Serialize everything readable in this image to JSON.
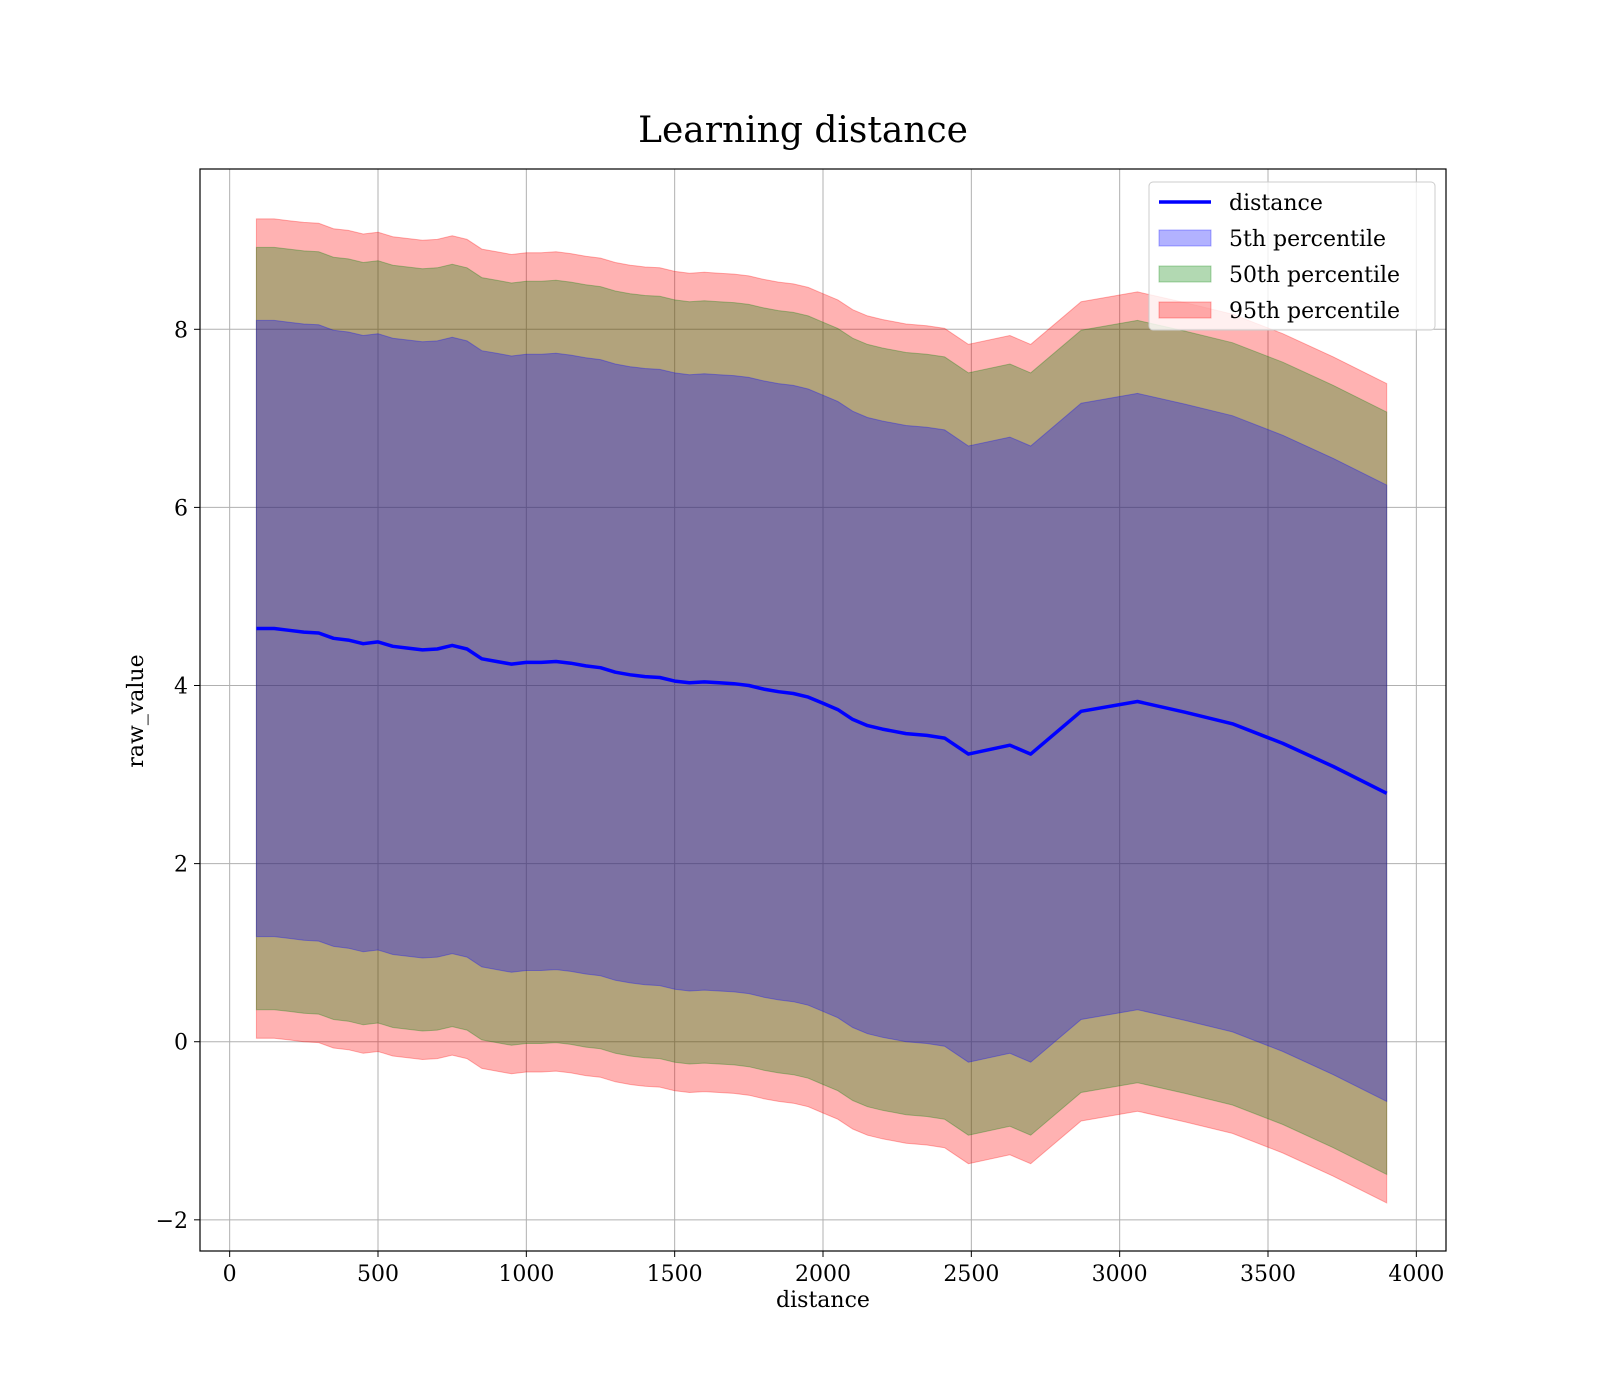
{
  "chart_data": {
    "type": "line",
    "title": "Learning distance",
    "xlabel": "distance",
    "ylabel": "raw_value",
    "xlim": [
      -100,
      4100
    ],
    "ylim": [
      -2.35,
      9.8
    ],
    "xticks": [
      0,
      500,
      1000,
      1500,
      2000,
      2500,
      3000,
      3500,
      4000
    ],
    "yticks": [
      -2,
      0,
      2,
      4,
      6,
      8
    ],
    "grid": true,
    "legend_position": "top-right",
    "x": [
      90,
      150,
      200,
      250,
      300,
      350,
      400,
      450,
      500,
      550,
      600,
      650,
      700,
      750,
      800,
      850,
      900,
      950,
      1000,
      1050,
      1100,
      1150,
      1200,
      1250,
      1300,
      1350,
      1400,
      1450,
      1500,
      1550,
      1600,
      1650,
      1700,
      1750,
      1800,
      1850,
      1900,
      1950,
      2000,
      2050,
      2100,
      2150,
      2200,
      2280,
      2350,
      2410,
      2490,
      2630,
      2700,
      2870,
      3060,
      3220,
      3380,
      3550,
      3720,
      3900
    ],
    "series": [
      {
        "name": "distance",
        "kind": "line",
        "color": "#0000ff",
        "values": [
          4.64,
          4.64,
          4.62,
          4.6,
          4.59,
          4.53,
          4.51,
          4.47,
          4.49,
          4.44,
          4.42,
          4.4,
          4.41,
          4.45,
          4.41,
          4.3,
          4.27,
          4.24,
          4.26,
          4.26,
          4.27,
          4.25,
          4.22,
          4.2,
          4.15,
          4.12,
          4.1,
          4.09,
          4.05,
          4.03,
          4.04,
          4.03,
          4.02,
          4.0,
          3.96,
          3.93,
          3.91,
          3.87,
          3.8,
          3.73,
          3.62,
          3.55,
          3.51,
          3.46,
          3.44,
          3.41,
          3.23,
          3.33,
          3.23,
          3.71,
          3.82,
          3.7,
          3.57,
          3.35,
          3.09,
          2.79
        ]
      },
      {
        "name": "5th percentile",
        "kind": "band",
        "color": "#0000ff",
        "half_width": 3.46
      },
      {
        "name": "50th percentile",
        "kind": "band",
        "color": "#008000",
        "half_width": 4.28
      },
      {
        "name": "95th percentile",
        "kind": "band",
        "color": "#ff0000",
        "half_width": 4.6
      }
    ]
  }
}
